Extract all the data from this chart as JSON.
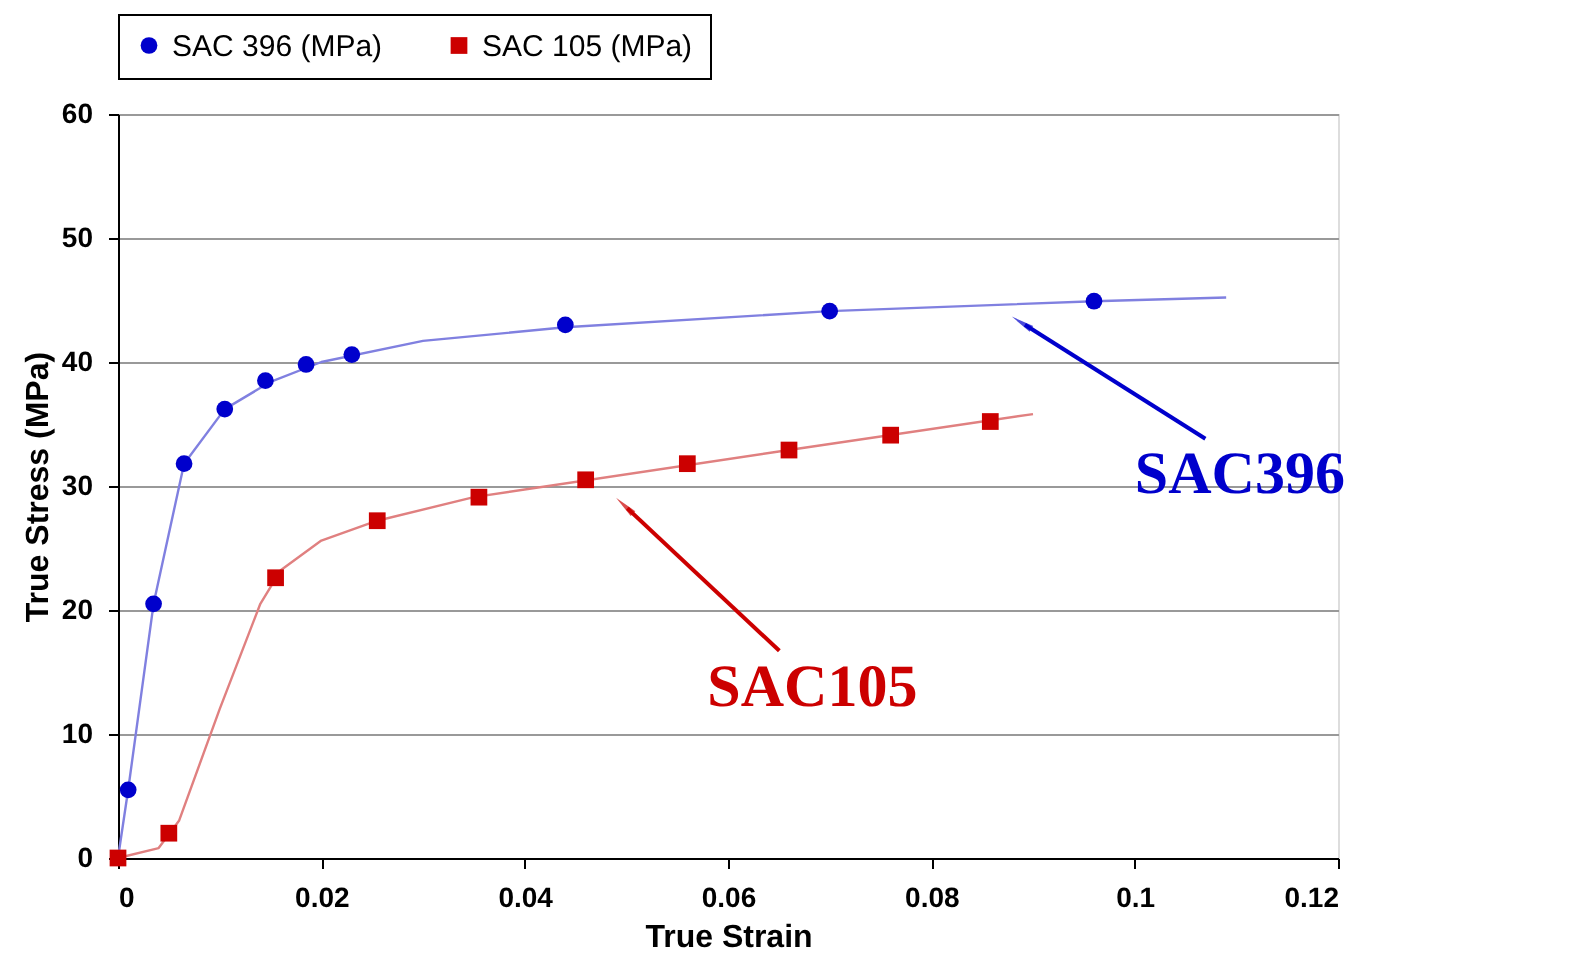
{
  "chart_data": {
    "type": "scatter",
    "xlabel": "True Strain",
    "ylabel": "True Stress (MPa)",
    "xlim": [
      0,
      0.12
    ],
    "xticks": [
      {
        "value": 0,
        "label": "0"
      },
      0.02,
      0.04,
      0.06,
      0.08,
      {
        "value": 0.1,
        "label": "0.1"
      },
      0.12
    ],
    "ylim": [
      0,
      60
    ],
    "yticks": [
      0,
      10,
      20,
      30,
      40,
      50,
      60
    ],
    "grid": "y",
    "legend": "top",
    "series": [
      {
        "name": "SAC 396 (MPa)",
        "color": "#0000cc",
        "marker": "circle",
        "x": [
          0.001,
          0.0035,
          0.0065,
          0.0105,
          0.0145,
          0.0185,
          0.023,
          0.044,
          0.07,
          0.096
        ],
        "values": [
          5.5,
          20.5,
          31.8,
          36.2,
          38.5,
          39.8,
          40.6,
          43.0,
          44.1,
          44.9
        ]
      },
      {
        "name": "SAC 105 (MPa)",
        "color": "#cc0000",
        "marker": "square",
        "x": [
          0,
          0.005,
          0.0155,
          0.0255,
          0.0355,
          0.046,
          0.056,
          0.066,
          0.076,
          0.0858
        ],
        "values": [
          0,
          2,
          22.6,
          27.2,
          29.1,
          30.5,
          31.8,
          32.9,
          34.1,
          35.2
        ]
      },
      {
        "color": "#8080e0",
        "type": "line",
        "marker": "none",
        "line_style": "solid",
        "x": [
          0,
          0.001,
          0.0035,
          0.0065,
          0.0105,
          0.015,
          0.02,
          0.03,
          0.044,
          0.07,
          0.096,
          0.109
        ],
        "values": [
          0,
          5.5,
          20.5,
          31.8,
          36.2,
          38.4,
          40,
          41.7,
          42.8,
          44.1,
          44.9,
          45.2
        ]
      },
      {
        "color": "#e08080",
        "type": "line",
        "marker": "none",
        "line_style": "solid",
        "x": [
          0,
          0.004,
          0.006,
          0.01,
          0.014,
          0.016,
          0.02,
          0.0255,
          0.035,
          0.066,
          0.09
        ],
        "values": [
          0,
          0.8,
          3,
          12,
          20.5,
          23.2,
          25.6,
          27.2,
          29.1,
          32.9,
          35.8
        ]
      }
    ],
    "annotations": [
      {
        "text": "SAC396",
        "x": 0.0892,
        "y": 43.0
      },
      {
        "text": "SAC105",
        "x": 0.0501,
        "y": 28.2
      }
    ]
  }
}
